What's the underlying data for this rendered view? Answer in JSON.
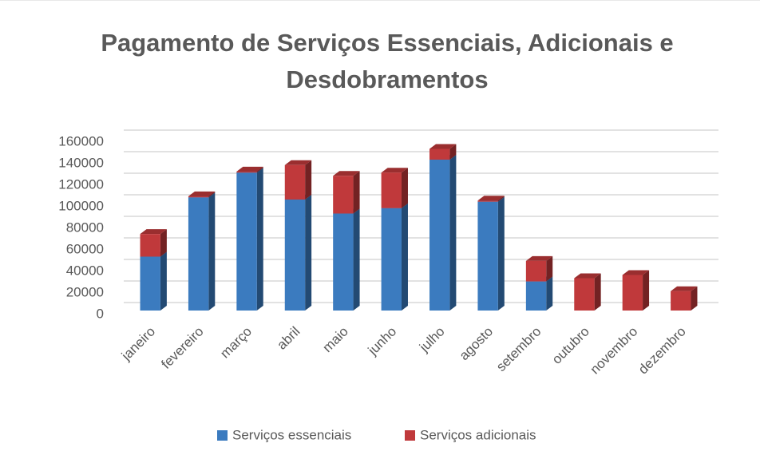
{
  "chart_data": {
    "type": "bar",
    "stacked": true,
    "title": "Pagamento de Serviços Essenciais, Adicionais e Desdobramentos",
    "categories": [
      "janeiro",
      "fevereiro",
      "março",
      "abril",
      "maio",
      "junho",
      "julho",
      "agosto",
      "setembro",
      "outubro",
      "novembro",
      "dezembro"
    ],
    "series": [
      {
        "name": "Serviços essenciais",
        "color": "#3b7bbf",
        "values": [
          50000,
          105000,
          128000,
          103000,
          90000,
          95000,
          140000,
          101000,
          27000,
          0,
          0,
          0
        ]
      },
      {
        "name": "Serviços adicionais",
        "color": "#c0393b",
        "values": [
          21000,
          1000,
          1000,
          32000,
          35000,
          33000,
          10000,
          1000,
          19000,
          30000,
          33000,
          18000
        ]
      }
    ],
    "ylim": [
      0,
      160000
    ],
    "yticks": [
      0,
      20000,
      40000,
      60000,
      80000,
      100000,
      120000,
      140000,
      160000
    ],
    "grid": true,
    "legend": "bottom"
  }
}
